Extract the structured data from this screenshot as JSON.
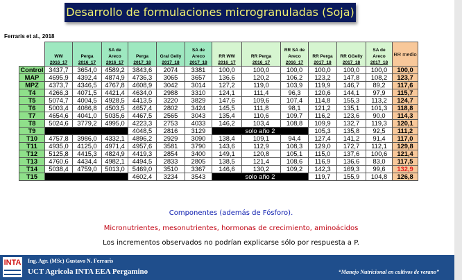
{
  "title": "Desarrollo de formulaciones microgranuladas (Soja)",
  "citation": "Ferraris et al., 2018",
  "table": {
    "headers": [
      [
        "WW",
        "2016_17"
      ],
      [
        "Perga",
        "2016_17"
      ],
      [
        "SA de Areco",
        "2016_17"
      ],
      [
        "Perga",
        "2017_18"
      ],
      [
        "Gral Gelly",
        "2017_18"
      ],
      [
        "SA de Areco",
        "2017_18"
      ],
      [
        "RR WW",
        "2016_17"
      ],
      [
        "RR Perga",
        "2016_17"
      ],
      [
        "RR SA de Areco",
        "2016_17"
      ],
      [
        "RR Perga",
        "2017_18"
      ],
      [
        "RR GGelly",
        "2017_18"
      ],
      [
        "SA de Areco",
        "2017_18"
      ],
      [
        "RR medio",
        ""
      ]
    ],
    "solo_label": "solo año 2",
    "rows": [
      {
        "label": "Control",
        "values": [
          "3437,7",
          "3654,0",
          "4589,2",
          "3843,6",
          "2074",
          "3381",
          "100,0",
          "100,0",
          "100,0",
          "100,0",
          "100,0",
          "100,0",
          "100,0"
        ]
      },
      {
        "label": "MAP",
        "values": [
          "4695,9",
          "4392,4",
          "4874,9",
          "4736,3",
          "3065",
          "3657",
          "136,6",
          "120,2",
          "106,2",
          "123,2",
          "147,8",
          "108,2",
          "123,7"
        ]
      },
      {
        "label": "MPZ",
        "values": [
          "4373,7",
          "4346,5",
          "4767,8",
          "4608,9",
          "3042",
          "3014",
          "127,2",
          "119,0",
          "103,9",
          "119,9",
          "146,7",
          "89,2",
          "117,6"
        ]
      },
      {
        "label": "T4",
        "values": [
          "4266,3",
          "4071,5",
          "4421,4",
          "4634,0",
          "2988",
          "3310",
          "124,1",
          "111,4",
          "96,3",
          "120,6",
          "144,1",
          "97,9",
          "115,7"
        ]
      },
      {
        "label": "T5",
        "values": [
          "5074,7",
          "4004,5",
          "4928,5",
          "4413,5",
          "3220",
          "3829",
          "147,6",
          "109,6",
          "107,4",
          "114,8",
          "155,3",
          "113,2",
          "124,7"
        ]
      },
      {
        "label": "T6",
        "values": [
          "5003,4",
          "4086,8",
          "4503,5",
          "4657,4",
          "2802",
          "3424",
          "145,5",
          "111,8",
          "98,1",
          "121,2",
          "135,1",
          "101,3",
          "118,8"
        ]
      },
      {
        "label": "T7",
        "values": [
          "4654,6",
          "4041,0",
          "5035,6",
          "4467,5",
          "2565",
          "3043",
          "135,4",
          "110,6",
          "109,7",
          "116,2",
          "123,6",
          "90,0",
          "114,3"
        ]
      },
      {
        "label": "T8",
        "values": [
          "5024,6",
          "3779,2",
          "4995,0",
          "4223,3",
          "2753",
          "4033",
          "146,2",
          "103,4",
          "108,8",
          "109,9",
          "132,7",
          "119,3",
          "120,1"
        ]
      },
      {
        "label": "T9",
        "solo": true,
        "values": [
          "",
          "",
          "",
          "4048,5",
          "2816",
          "3129",
          "",
          "",
          "",
          "105,3",
          "135,8",
          "92,5",
          "111,2"
        ]
      },
      {
        "label": "T10",
        "values": [
          "4757,8",
          "3986,0",
          "4332,1",
          "4896,2",
          "2929",
          "3090",
          "138,4",
          "109,1",
          "94,4",
          "127,4",
          "141,2",
          "91,4",
          "117,0"
        ]
      },
      {
        "label": "T11",
        "values": [
          "4935,0",
          "4125,0",
          "4971,4",
          "4957,6",
          "3581",
          "3790",
          "143,6",
          "112,9",
          "108,3",
          "129,0",
          "172,7",
          "112,1",
          "129,8"
        ]
      },
      {
        "label": "T12",
        "values": [
          "5125,8",
          "4415,3",
          "4824,9",
          "4419,3",
          "2854",
          "3400",
          "149,1",
          "120,8",
          "105,1",
          "115,0",
          "137,6",
          "100,6",
          "121,4"
        ]
      },
      {
        "label": "T13",
        "values": [
          "4760,6",
          "4434,4",
          "4982,1",
          "4494,5",
          "2833",
          "2805",
          "138,5",
          "121,4",
          "108,6",
          "116,9",
          "136,6",
          "83,0",
          "117,5"
        ]
      },
      {
        "label": "T14",
        "highlight": true,
        "values": [
          "5038,4",
          "4759,0",
          "5013,0",
          "5469,0",
          "3510",
          "3367",
          "146,6",
          "130,2",
          "109,2",
          "142,3",
          "169,3",
          "99,6",
          "132,9"
        ]
      },
      {
        "label": "T15",
        "solo": true,
        "values": [
          "",
          "",
          "",
          "4602,4",
          "3234",
          "3543",
          "",
          "",
          "",
          "119,7",
          "155,9",
          "104,8",
          "126,8"
        ]
      }
    ]
  },
  "notes": [
    "Componentes (además de Fósforo).",
    "Micronutrientes, mesonutrientes, hormonas de crecimiento, aminoácidos",
    "Los incrementos observados no podrían explicarse sólo por respuesta a P."
  ],
  "footer": {
    "logo": "INTA",
    "author": "Ing. Agr. (MSc) Gustavo N. Ferraris",
    "unit": "UCT Agricola INTA EEA Pergamino",
    "tagline": "“Manejo Nutricional en cultivos de verano”"
  },
  "colors": {
    "title_bg": "#0a1a5c",
    "title_text": "#f0f070",
    "header_green": "#9ee8c0",
    "label_green": "#8fe08a",
    "rr_medio": "#f8c89a",
    "footer_bg": "#1f4e8c",
    "highlight": "#e02020"
  }
}
